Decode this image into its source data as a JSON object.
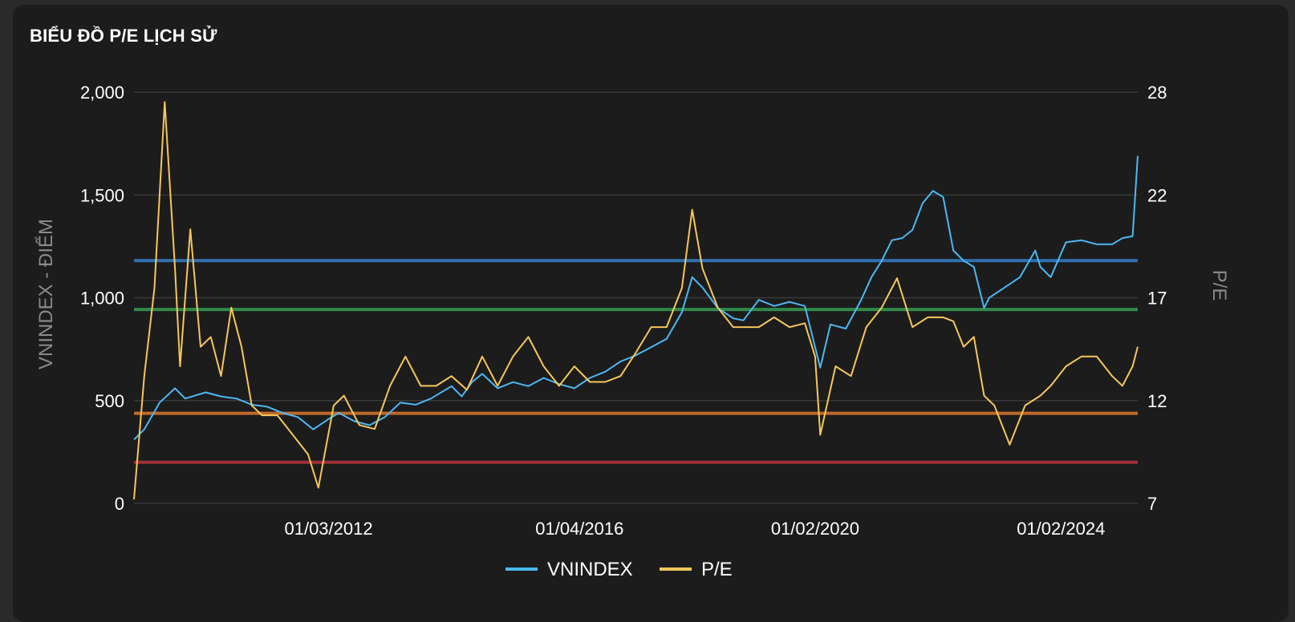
{
  "chart_data": {
    "type": "line",
    "title": "BIỂU ĐỒ P/E LỊCH SỬ",
    "ylabel": "VNINDEX - ĐIỂM",
    "y2label": "P/E",
    "ylim": [
      0,
      2000
    ],
    "y2lim": [
      7,
      28
    ],
    "yticks": [
      "0",
      "500",
      "1,000",
      "1,500",
      "2,000"
    ],
    "y2ticks": [
      "7",
      "12",
      "17",
      "22",
      "28"
    ],
    "xlim": [
      "2009-01",
      "2025-05"
    ],
    "xticks": [
      {
        "date": "2012-03",
        "label": "01/03/2012"
      },
      {
        "date": "2016-04",
        "label": "01/04/2016"
      },
      {
        "date": "2020-02",
        "label": "01/02/2020"
      },
      {
        "date": "2024-02",
        "label": "01/02/2024"
      }
    ],
    "grid": true,
    "legend_position": "bottom",
    "reference_lines_pe": [
      {
        "value": 19.4,
        "color": "#2f6fae"
      },
      {
        "value": 16.9,
        "color": "#2f8a4a"
      },
      {
        "value": 11.6,
        "color": "#c06a2a"
      },
      {
        "value": 9.1,
        "color": "#9e3038"
      }
    ],
    "series": [
      {
        "name": "VNINDEX",
        "axis": "left",
        "color": "#4cb8f5",
        "x": [
          "2009-01",
          "2009-03",
          "2009-06",
          "2009-09",
          "2009-11",
          "2010-03",
          "2010-06",
          "2010-09",
          "2010-12",
          "2011-03",
          "2011-06",
          "2011-09",
          "2011-12",
          "2012-03",
          "2012-05",
          "2012-08",
          "2012-11",
          "2013-02",
          "2013-05",
          "2013-08",
          "2013-11",
          "2014-03",
          "2014-05",
          "2014-07",
          "2014-09",
          "2014-12",
          "2015-03",
          "2015-06",
          "2015-09",
          "2015-12",
          "2016-03",
          "2016-06",
          "2016-09",
          "2016-12",
          "2017-03",
          "2017-06",
          "2017-09",
          "2017-12",
          "2018-02",
          "2018-04",
          "2018-07",
          "2018-10",
          "2018-12",
          "2019-03",
          "2019-06",
          "2019-09",
          "2019-12",
          "2020-03",
          "2020-05",
          "2020-08",
          "2020-11",
          "2021-01",
          "2021-03",
          "2021-05",
          "2021-07",
          "2021-09",
          "2021-11",
          "2022-01",
          "2022-03",
          "2022-05",
          "2022-07",
          "2022-09",
          "2022-11",
          "2022-12",
          "2023-03",
          "2023-06",
          "2023-09",
          "2023-10",
          "2023-12",
          "2024-03",
          "2024-06",
          "2024-09",
          "2024-12",
          "2025-02",
          "2025-04",
          "2025-05"
        ],
        "y": [
          310,
          360,
          490,
          560,
          510,
          540,
          520,
          510,
          480,
          470,
          440,
          420,
          360,
          410,
          440,
          400,
          380,
          420,
          490,
          480,
          510,
          570,
          520,
          590,
          630,
          560,
          590,
          570,
          610,
          580,
          560,
          610,
          640,
          690,
          720,
          760,
          800,
          930,
          1100,
          1050,
          950,
          900,
          890,
          990,
          960,
          980,
          960,
          660,
          870,
          850,
          990,
          1100,
          1180,
          1280,
          1290,
          1330,
          1460,
          1520,
          1490,
          1230,
          1180,
          1150,
          950,
          1000,
          1050,
          1100,
          1230,
          1150,
          1100,
          1270,
          1280,
          1260,
          1260,
          1290,
          1300,
          1690
        ]
      },
      {
        "name": "P/E",
        "axis": "right",
        "color": "#f6c75b",
        "x": [
          "2009-01",
          "2009-03",
          "2009-05",
          "2009-07",
          "2009-09",
          "2009-10",
          "2009-12",
          "2010-02",
          "2010-04",
          "2010-06",
          "2010-08",
          "2010-10",
          "2010-12",
          "2011-02",
          "2011-05",
          "2011-08",
          "2011-11",
          "2012-01",
          "2012-04",
          "2012-06",
          "2012-09",
          "2012-12",
          "2013-03",
          "2013-06",
          "2013-09",
          "2013-12",
          "2014-03",
          "2014-06",
          "2014-09",
          "2014-12",
          "2015-03",
          "2015-06",
          "2015-09",
          "2015-12",
          "2016-03",
          "2016-06",
          "2016-09",
          "2016-12",
          "2017-03",
          "2017-06",
          "2017-09",
          "2017-12",
          "2018-02",
          "2018-04",
          "2018-07",
          "2018-10",
          "2018-12",
          "2019-03",
          "2019-06",
          "2019-09",
          "2019-12",
          "2020-02",
          "2020-03",
          "2020-06",
          "2020-09",
          "2020-12",
          "2021-03",
          "2021-06",
          "2021-09",
          "2021-12",
          "2022-03",
          "2022-05",
          "2022-07",
          "2022-09",
          "2022-11",
          "2023-01",
          "2023-04",
          "2023-07",
          "2023-10",
          "2023-12",
          "2024-03",
          "2024-06",
          "2024-09",
          "2024-12",
          "2025-02",
          "2025-04",
          "2025-05"
        ],
        "y": [
          7.2,
          13.5,
          18.0,
          27.5,
          19.0,
          14.0,
          21.0,
          15.0,
          15.5,
          13.5,
          17.0,
          15.0,
          12.0,
          11.5,
          11.5,
          10.5,
          9.5,
          7.8,
          12.0,
          12.5,
          11.0,
          10.8,
          13.0,
          14.5,
          13.0,
          13.0,
          13.5,
          12.8,
          14.5,
          13.0,
          14.5,
          15.5,
          14.0,
          13.0,
          14.0,
          13.2,
          13.2,
          13.5,
          14.7,
          16.0,
          16.0,
          18.0,
          22.0,
          19.0,
          17.0,
          16.0,
          16.0,
          16.0,
          16.5,
          16.0,
          16.2,
          14.5,
          10.5,
          14.0,
          13.5,
          16.0,
          17.0,
          18.5,
          16.0,
          16.5,
          16.5,
          16.3,
          15.0,
          15.5,
          12.5,
          12.0,
          10.0,
          12.0,
          12.5,
          13.0,
          14.0,
          14.5,
          14.5,
          13.5,
          13.0,
          14.0,
          15.0
        ]
      }
    ]
  }
}
